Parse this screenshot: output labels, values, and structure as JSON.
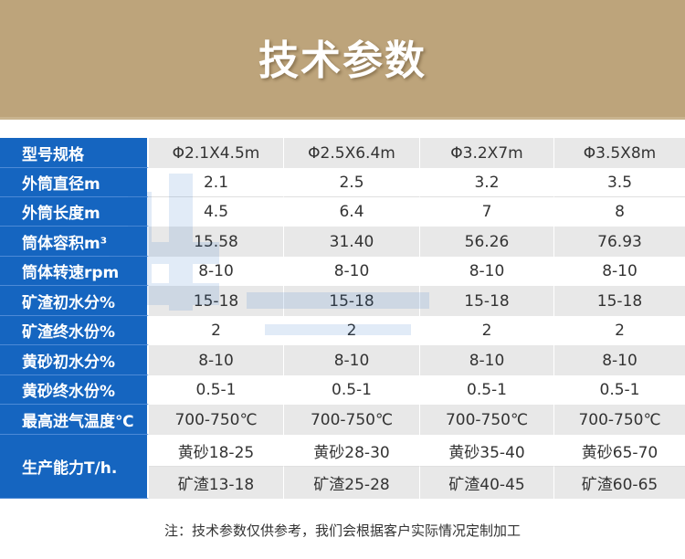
{
  "banner": {
    "title": "技术参数"
  },
  "table": {
    "rows": [
      {
        "label": "型号规格",
        "values": [
          "Φ2.1X4.5m",
          "Φ2.5X6.4m",
          "Φ3.2X7m",
          "Φ3.5X8m"
        ]
      },
      {
        "label": "外筒直径m",
        "values": [
          "2.1",
          "2.5",
          "3.2",
          "3.5"
        ]
      },
      {
        "label": "外筒长度m",
        "values": [
          "4.5",
          "6.4",
          "7",
          "8"
        ]
      },
      {
        "label": "筒体容积m³",
        "values": [
          "15.58",
          "31.40",
          "56.26",
          "76.93"
        ]
      },
      {
        "label": "筒体转速rpm",
        "values": [
          "8-10",
          "8-10",
          "8-10",
          "8-10"
        ]
      },
      {
        "label": "矿渣初水分%",
        "values": [
          "15-18",
          "15-18",
          "15-18",
          "15-18"
        ]
      },
      {
        "label": "矿渣终水份%",
        "values": [
          "2",
          "2",
          "2",
          "2"
        ]
      },
      {
        "label": "黄砂初水分%",
        "values": [
          "8-10",
          "8-10",
          "8-10",
          "8-10"
        ]
      },
      {
        "label": "黄砂终水份%",
        "values": [
          "0.5-1",
          "0.5-1",
          "0.5-1",
          "0.5-1"
        ]
      },
      {
        "label": "最高进气温度℃",
        "values": [
          "700-750℃",
          "700-750℃",
          "700-750℃",
          "700-750℃"
        ]
      }
    ],
    "capacity": {
      "label": "生产能力T/h.",
      "sand": [
        "黄砂18-25",
        "黄砂28-30",
        "黄砂35-40",
        "黄砂65-70"
      ],
      "slag": [
        "矿渣13-18",
        "矿渣25-28",
        "矿渣40-45",
        "矿渣60-65"
      ]
    }
  },
  "note": "注：技术参数仅供参考，我们会根据客户实际情况定制加工"
}
